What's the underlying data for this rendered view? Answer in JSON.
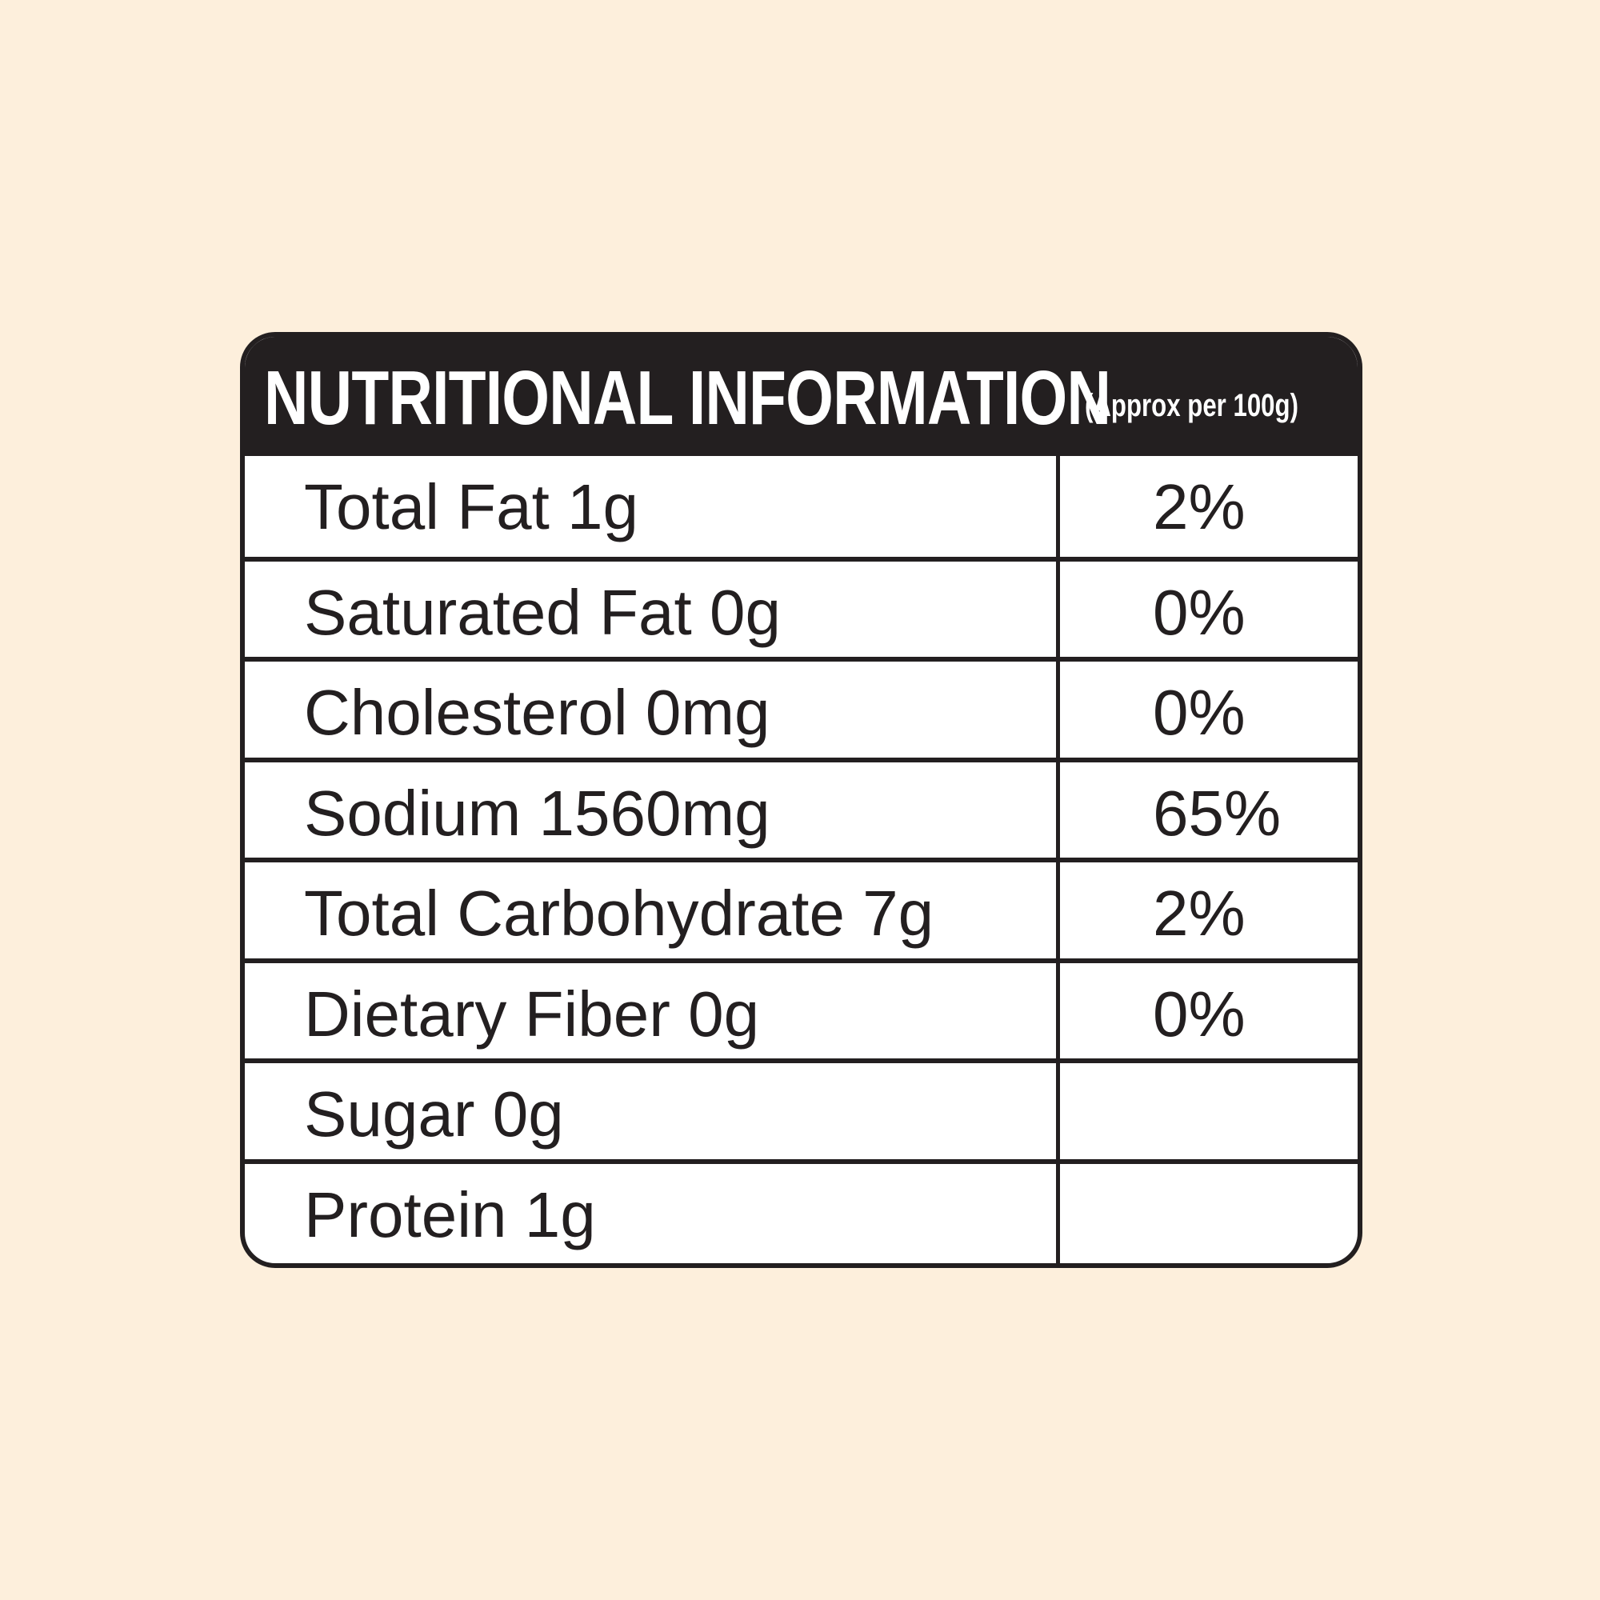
{
  "header": {
    "title": "NUTRITIONAL INFORMATION",
    "subtitle": "(Approx per 100g)"
  },
  "rows": [
    {
      "name": "Total Fat 1g",
      "dv": "2%"
    },
    {
      "name": "Saturated Fat 0g",
      "dv": "0%"
    },
    {
      "name": "Cholesterol 0mg",
      "dv": "0%"
    },
    {
      "name": "Sodium 1560mg",
      "dv": "65%"
    },
    {
      "name": "Total Carbohydrate 7g",
      "dv": "2%"
    },
    {
      "name": "Dietary Fiber 0g",
      "dv": "0%"
    },
    {
      "name": "Sugar 0g",
      "dv": ""
    },
    {
      "name": "Protein 1g",
      "dv": ""
    }
  ],
  "colors": {
    "background": "#fdefdc",
    "ink": "#231f20",
    "panel": "#ffffff"
  }
}
